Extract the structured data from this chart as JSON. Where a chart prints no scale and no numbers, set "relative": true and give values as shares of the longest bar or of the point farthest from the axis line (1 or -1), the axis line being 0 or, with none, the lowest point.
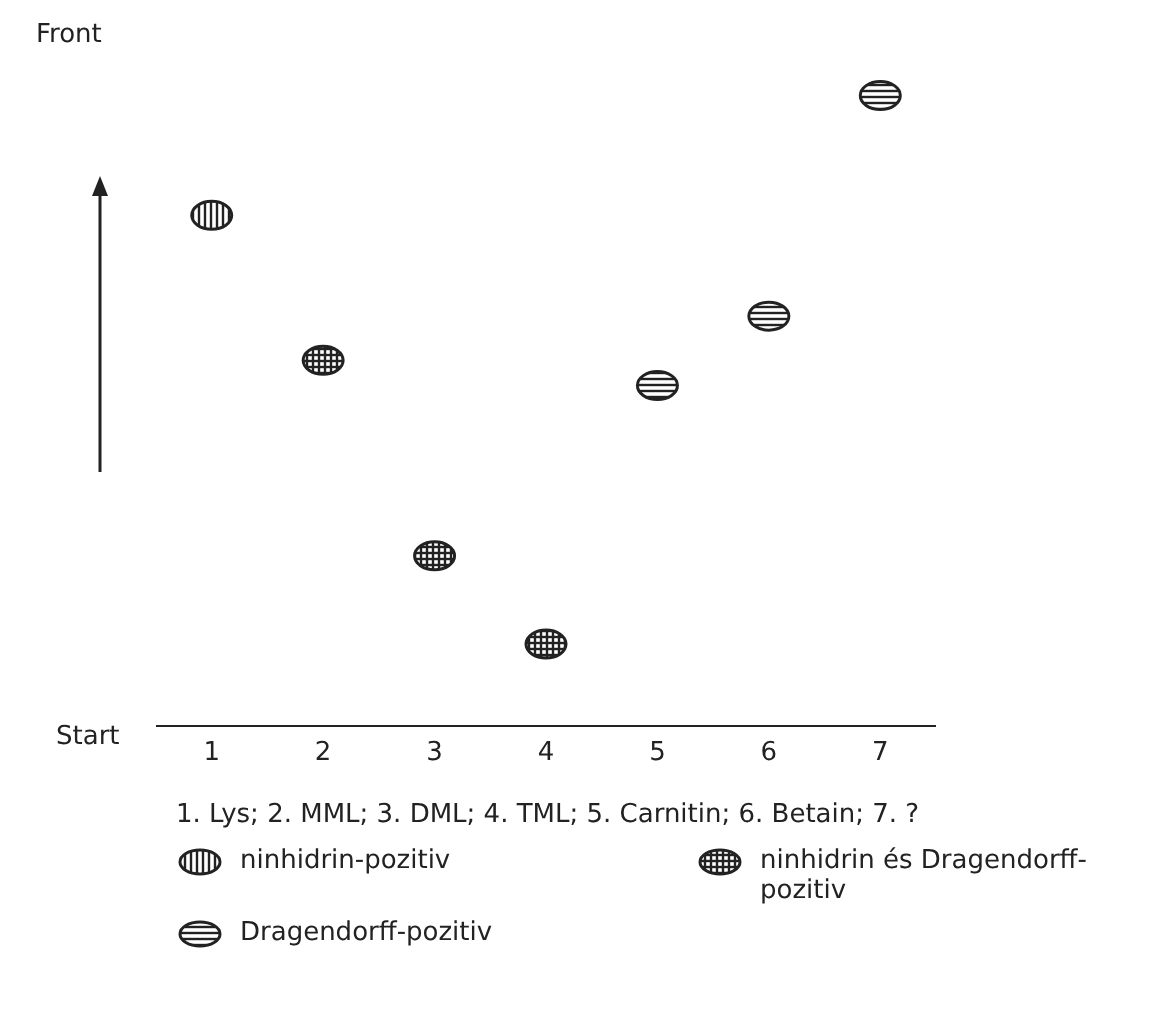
{
  "chart_data": {
    "type": "scatter",
    "categories": [
      "1",
      "2",
      "3",
      "4",
      "5",
      "6",
      "7"
    ],
    "relative": true,
    "series": [
      {
        "name": "ninhidrin-pozitiv",
        "color": "#222222",
        "values": [
          0.81,
          null,
          null,
          null,
          null,
          null,
          null
        ]
      },
      {
        "name": "ninhidrin és Dragendorff-pozitiv",
        "color": "#222222",
        "values": [
          null,
          0.58,
          0.27,
          0.13,
          null,
          null,
          null
        ]
      },
      {
        "name": "Dragendorff-pozitiv",
        "color": "#222222",
        "values": [
          null,
          null,
          null,
          null,
          0.54,
          0.65,
          1
        ]
      }
    ],
    "annotations": [
      "Front",
      "Start",
      "1. Lys;  2. MML;  3. DML;  4. TML;  5. Carnitin;  6. Betain;  7. ?"
    ],
    "legend": "bottom",
    "grid": false
  }
}
